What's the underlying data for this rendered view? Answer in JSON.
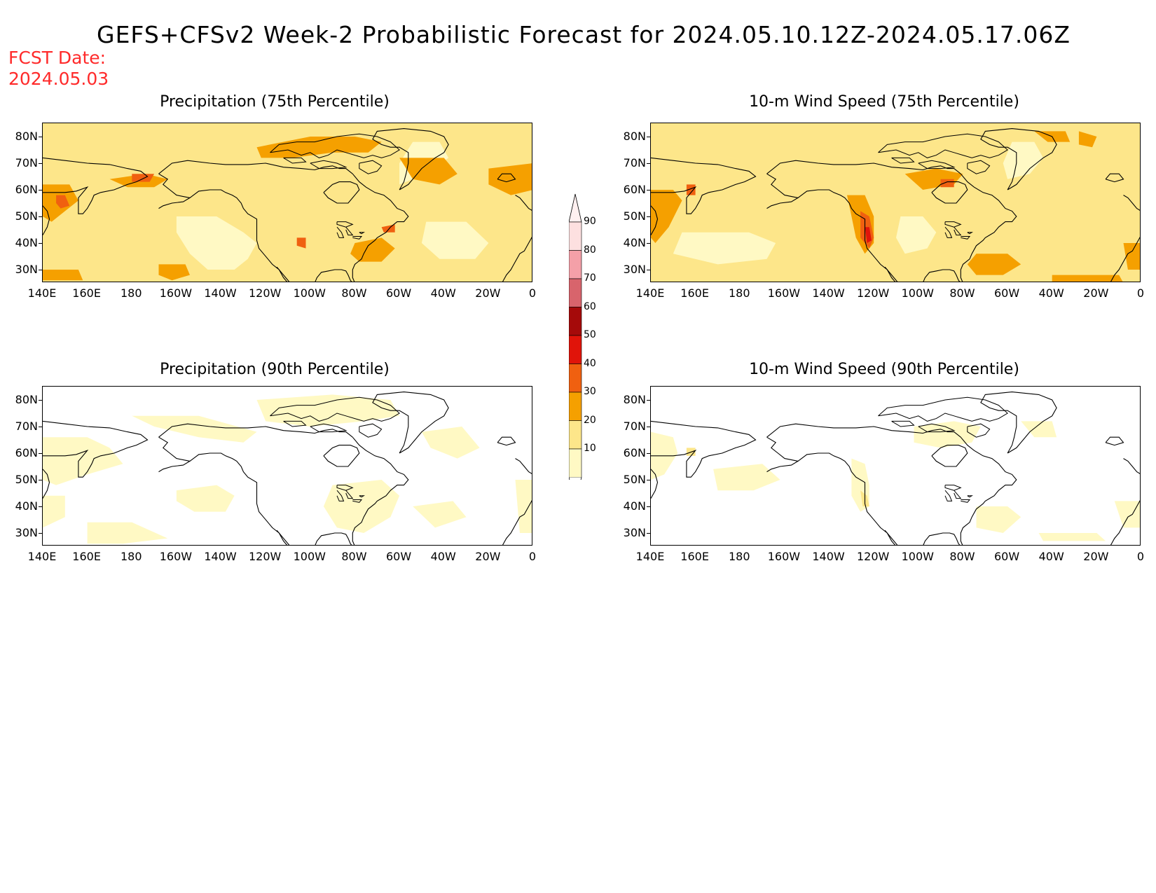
{
  "title": "GEFS+CFSv2 Week-2 Probabilistic Forecast for 2024.05.10.12Z-2024.05.17.06Z",
  "fcst_label": "FCST Date:",
  "fcst_date": "2024.05.03",
  "panels": [
    {
      "title": "Precipitation (75th Percentile)"
    },
    {
      "title": "10-m Wind Speed (75th Percentile)"
    },
    {
      "title": "Precipitation (90th Percentile)"
    },
    {
      "title": "10-m Wind Speed (90th Percentile)"
    }
  ],
  "lat_labels": [
    "80N",
    "70N",
    "60N",
    "50N",
    "40N",
    "30N"
  ],
  "lon_labels": [
    "140E",
    "160E",
    "180",
    "160W",
    "140W",
    "120W",
    "100W",
    "80W",
    "60W",
    "40W",
    "20W",
    "0"
  ],
  "colorbar": {
    "labels": [
      "90",
      "80",
      "70",
      "60",
      "50",
      "40",
      "30",
      "20",
      "10"
    ],
    "colors": [
      "#fde0e0",
      "#f4a0a8",
      "#d8646c",
      "#a50a0a",
      "#e0140a",
      "#f06010",
      "#f5a000",
      "#fde68a",
      "#fff9c4"
    ]
  },
  "shade_colors": {
    "c10": "#fff9c4",
    "c20": "#fde68a",
    "c30": "#f5a000",
    "c40": "#f06010",
    "c50": "#e0140a",
    "c60": "#a50a0a"
  }
}
